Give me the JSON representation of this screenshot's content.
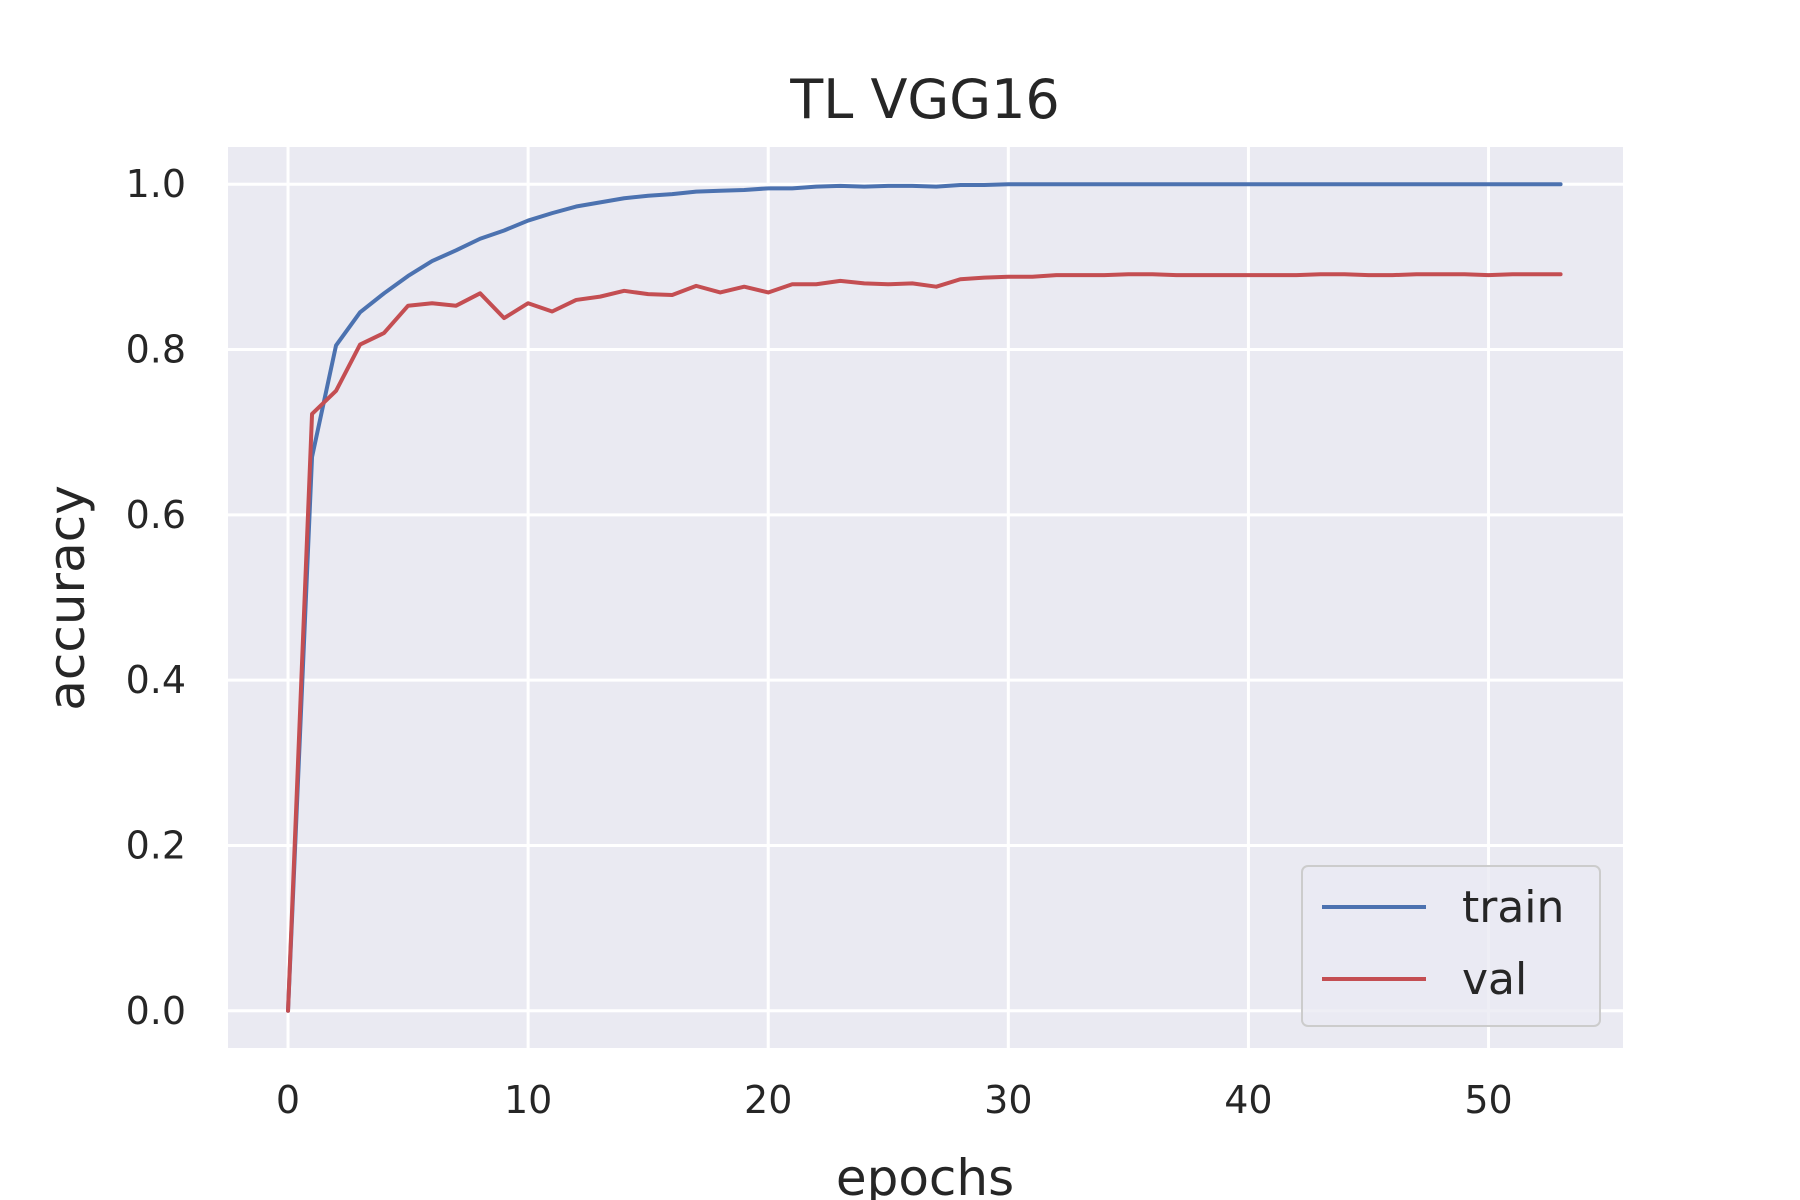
{
  "chart_data": {
    "type": "line",
    "title": "TL VGG16",
    "xlabel": "epochs",
    "ylabel": "accuracy",
    "xlim": [
      -2.5,
      55.6
    ],
    "ylim": [
      -0.045,
      1.045
    ],
    "xticks": [
      0,
      10,
      20,
      30,
      40,
      50
    ],
    "yticks": [
      0.0,
      0.2,
      0.4,
      0.6,
      0.8,
      1.0
    ],
    "xtick_labels": [
      "0",
      "10",
      "20",
      "30",
      "40",
      "50"
    ],
    "ytick_labels": [
      "0.0",
      "0.2",
      "0.4",
      "0.6",
      "0.8",
      "1.0"
    ],
    "grid": true,
    "legend_position": "lower-right",
    "series": [
      {
        "name": "train",
        "color": "#4c72b0",
        "values": [
          0.0,
          0.67,
          0.805,
          0.845,
          0.868,
          0.889,
          0.907,
          0.92,
          0.934,
          0.944,
          0.956,
          0.965,
          0.973,
          0.978,
          0.983,
          0.986,
          0.988,
          0.991,
          0.992,
          0.993,
          0.995,
          0.995,
          0.997,
          0.998,
          0.997,
          0.998,
          0.998,
          0.997,
          0.999,
          0.999,
          1.0,
          1.0,
          1.0,
          1.0,
          1.0,
          1.0,
          1.0,
          1.0,
          1.0,
          1.0,
          1.0,
          1.0,
          1.0,
          1.0,
          1.0,
          1.0,
          1.0,
          1.0,
          1.0,
          1.0,
          1.0,
          1.0,
          1.0,
          1.0
        ]
      },
      {
        "name": "val",
        "color": "#c44e52",
        "values": [
          0.0,
          0.722,
          0.75,
          0.806,
          0.82,
          0.853,
          0.856,
          0.853,
          0.868,
          0.838,
          0.856,
          0.846,
          0.86,
          0.864,
          0.871,
          0.867,
          0.866,
          0.877,
          0.869,
          0.876,
          0.869,
          0.879,
          0.879,
          0.883,
          0.88,
          0.879,
          0.88,
          0.876,
          0.885,
          0.887,
          0.888,
          0.888,
          0.89,
          0.89,
          0.89,
          0.891,
          0.891,
          0.89,
          0.89,
          0.89,
          0.89,
          0.89,
          0.89,
          0.891,
          0.891,
          0.89,
          0.89,
          0.891,
          0.891,
          0.891,
          0.89,
          0.891,
          0.891,
          0.891
        ]
      }
    ]
  }
}
